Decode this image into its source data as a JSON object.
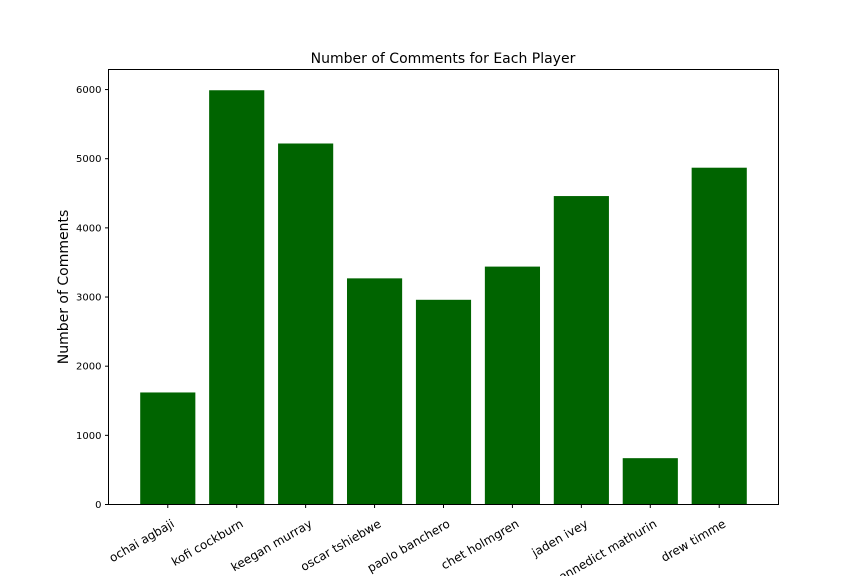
{
  "chart_data": {
    "type": "bar",
    "title": "Number of Comments for Each Player",
    "xlabel": "",
    "ylabel": "Number of Comments",
    "categories": [
      "ochai agbaji",
      "kofi cockburn",
      "keegan murray",
      "oscar tshiebwe",
      "paolo banchero",
      "chet holmgren",
      "jaden ivey",
      "bennedict mathurin",
      "drew timme"
    ],
    "values": [
      1620,
      5990,
      5220,
      3270,
      2960,
      3440,
      4460,
      670,
      4870
    ],
    "ylim": [
      0,
      6290
    ],
    "yticks": [
      0,
      1000,
      2000,
      3000,
      4000,
      5000,
      6000
    ],
    "grid": false,
    "bar_color": "#006400",
    "x_tick_rotation": 30
  }
}
